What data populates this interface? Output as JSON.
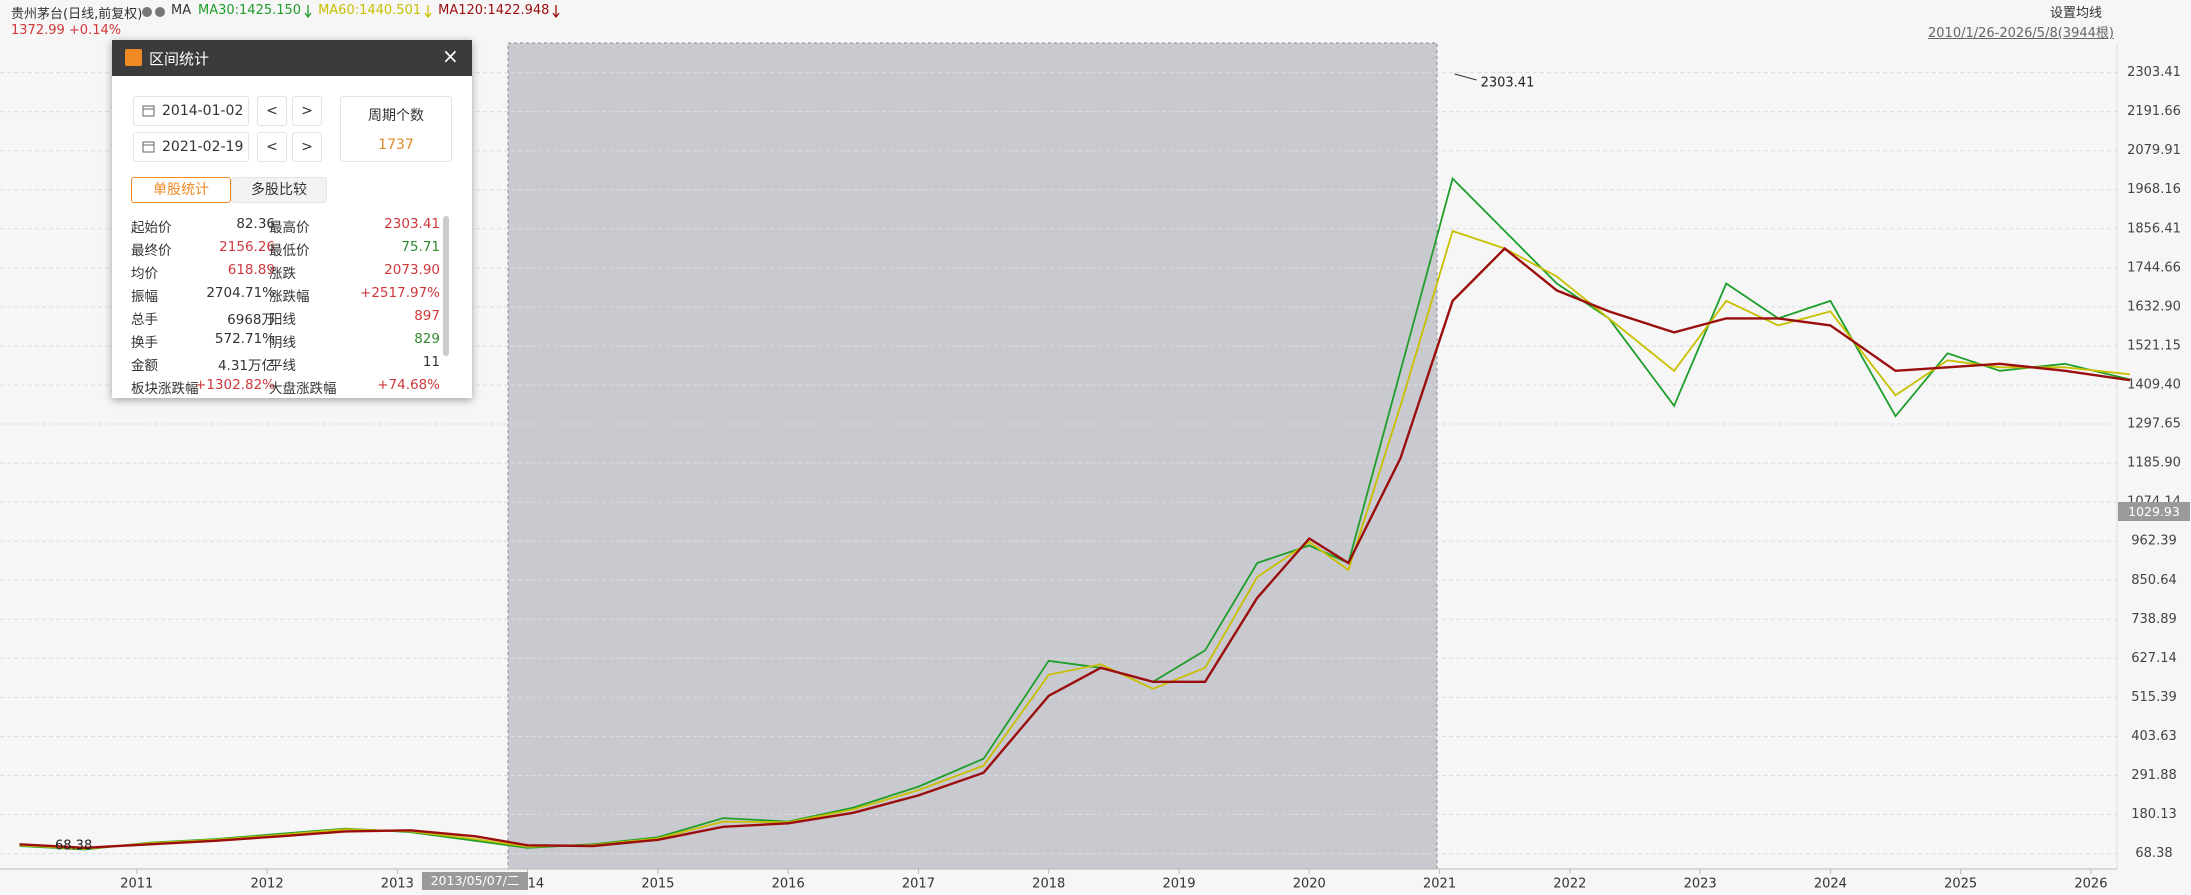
{
  "header": {
    "stock": "贵州茅台(日线,前复权)",
    "ma": "MA",
    "price": "1372.99",
    "change": "+0.14%",
    "settings": "设置均线",
    "range": "2010/1/26-2026/5/8(3944根)"
  },
  "panel": {
    "title": "区间统计",
    "start": "2014-01-02",
    "end": "2021-02-19",
    "prev": "<",
    "next": ">",
    "period_label": "周期个数",
    "period_value": 1737,
    "tabs": [
      "单股统计",
      "多股比较"
    ],
    "stats": [
      [
        {
          "label": "起始价",
          "value": "82.36",
          "color": "#333333"
        },
        {
          "label": "最高价",
          "value": "2303.41",
          "color": "#d0383c"
        }
      ],
      [
        {
          "label": "最终价",
          "value": "2156.26",
          "color": "#d0383c"
        },
        {
          "label": "最低价",
          "value": "75.71",
          "color": "#2e8b2e"
        }
      ],
      [
        {
          "label": "均价",
          "value": "618.89",
          "color": "#d0383c"
        },
        {
          "label": "涨跌",
          "value": "2073.90",
          "color": "#d0383c"
        }
      ],
      [
        {
          "label": "振幅",
          "value": "2704.71%",
          "color": "#333333"
        },
        {
          "label": "涨跌幅",
          "value": "+2517.97%",
          "color": "#d0383c"
        }
      ],
      [
        {
          "label": "总手",
          "value": "6968万",
          "color": "#333333"
        },
        {
          "label": "阳线",
          "value": "897",
          "color": "#d0383c"
        }
      ],
      [
        {
          "label": "换手",
          "value": "572.71%",
          "color": "#333333"
        },
        {
          "label": "阴线",
          "value": "829",
          "color": "#2e8b2e"
        }
      ],
      [
        {
          "label": "金额",
          "value": "4.31万亿",
          "color": "#333333"
        },
        {
          "label": "平线",
          "value": "11",
          "color": "#333333"
        }
      ],
      [
        {
          "label": "板块涨跌幅",
          "value": "+1302.82%",
          "color": "#d0383c"
        },
        {
          "label": "大盘涨跌幅",
          "value": "+74.68%",
          "color": "#d0383c"
        }
      ]
    ]
  },
  "crosshair": {
    "date": "2013/05/07/二",
    "price": "1029.93"
  },
  "chart_data": {
    "type": "line",
    "x": [
      2010.1,
      2010.6,
      2011.1,
      2011.6,
      2012.1,
      2012.6,
      2013.1,
      2013.6,
      2014.0,
      2014.5,
      2015.0,
      2015.5,
      2016.0,
      2016.5,
      2017.0,
      2017.5,
      2018.0,
      2018.4,
      2018.8,
      2019.2,
      2019.6,
      2020.0,
      2020.3,
      2020.7,
      2021.1,
      2021.5,
      2021.9,
      2022.3,
      2022.8,
      2023.2,
      2023.6,
      2024.0,
      2024.5,
      2024.9,
      2025.3,
      2025.8,
      2026.3
    ],
    "series": [
      {
        "name": "MA30:1425.150",
        "color": "#1f9e2c",
        "values": [
          90,
          80,
          100,
          110,
          125,
          140,
          130,
          105,
          85,
          95,
          115,
          170,
          160,
          200,
          260,
          340,
          620,
          600,
          560,
          650,
          900,
          950,
          900,
          1450,
          2000,
          1850,
          1700,
          1600,
          1350,
          1700,
          1600,
          1650,
          1320,
          1500,
          1450,
          1470,
          1425
        ]
      },
      {
        "name": "MA60:1440.501",
        "color": "#c8bf00",
        "values": [
          92,
          82,
          98,
          108,
          122,
          138,
          132,
          110,
          88,
          93,
          112,
          160,
          158,
          195,
          250,
          320,
          580,
          610,
          540,
          600,
          860,
          960,
          880,
          1350,
          1850,
          1800,
          1720,
          1600,
          1450,
          1650,
          1580,
          1620,
          1380,
          1480,
          1460,
          1460,
          1440
        ]
      },
      {
        "name": "MA120:1422.948",
        "color": "#9b0e0e",
        "values": [
          95,
          85,
          95,
          105,
          118,
          132,
          135,
          118,
          92,
          90,
          108,
          145,
          155,
          185,
          235,
          300,
          520,
          600,
          560,
          560,
          800,
          970,
          900,
          1200,
          1650,
          1800,
          1680,
          1620,
          1560,
          1600,
          1600,
          1580,
          1450,
          1460,
          1470,
          1450,
          1423
        ]
      }
    ],
    "annotations": [
      "2303.41",
      "68.38"
    ],
    "xlim": [
      2009.95,
      2026.2
    ],
    "xticks": [
      2011,
      2012,
      2013,
      2014,
      2015,
      2016,
      2017,
      2018,
      2019,
      2020,
      2021,
      2022,
      2023,
      2024,
      2025,
      2026
    ],
    "ylim": [
      68.38,
      2303.41
    ],
    "yticks": [
      68.38,
      180.13,
      291.88,
      403.63,
      515.39,
      627.14,
      738.89,
      850.64,
      962.39,
      1074.14,
      {
        "value": 1185.9,
        "label": "1185.90"
      },
      1297.65,
      {
        "value": 1409.4,
        "label": "1409.40"
      },
      1521.15,
      {
        "value": 1632.9,
        "label": "1632.90"
      },
      1744.66,
      1856.41,
      1968.16,
      2079.91,
      2191.66,
      2303.41
    ],
    "grid": true
  }
}
